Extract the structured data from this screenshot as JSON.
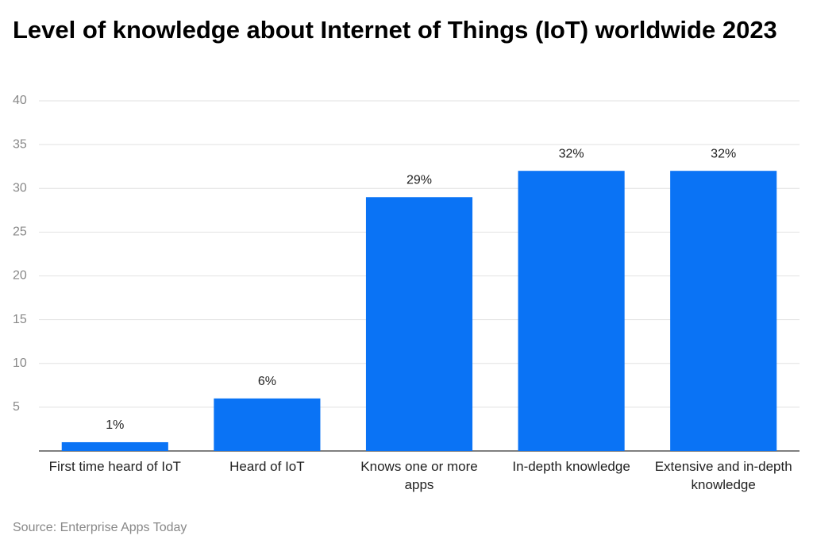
{
  "chart_data": {
    "type": "bar",
    "title": "Level of knowledge about Internet of Things (IoT) worldwide 2023",
    "categories": [
      "First time heard of IoT",
      "Heard of IoT",
      "Knows one or more apps",
      "In-depth knowledge",
      "Extensive and in-depth knowledge"
    ],
    "values": [
      1,
      6,
      29,
      32,
      32
    ],
    "value_labels": [
      "1%",
      "6%",
      "29%",
      "32%",
      "32%"
    ],
    "color": "#0a73f5",
    "ylim": [
      0,
      40
    ],
    "yticks": [
      5,
      10,
      15,
      20,
      25,
      30,
      35,
      40
    ],
    "grid": true,
    "source": "Source: Enterprise Apps Today"
  }
}
